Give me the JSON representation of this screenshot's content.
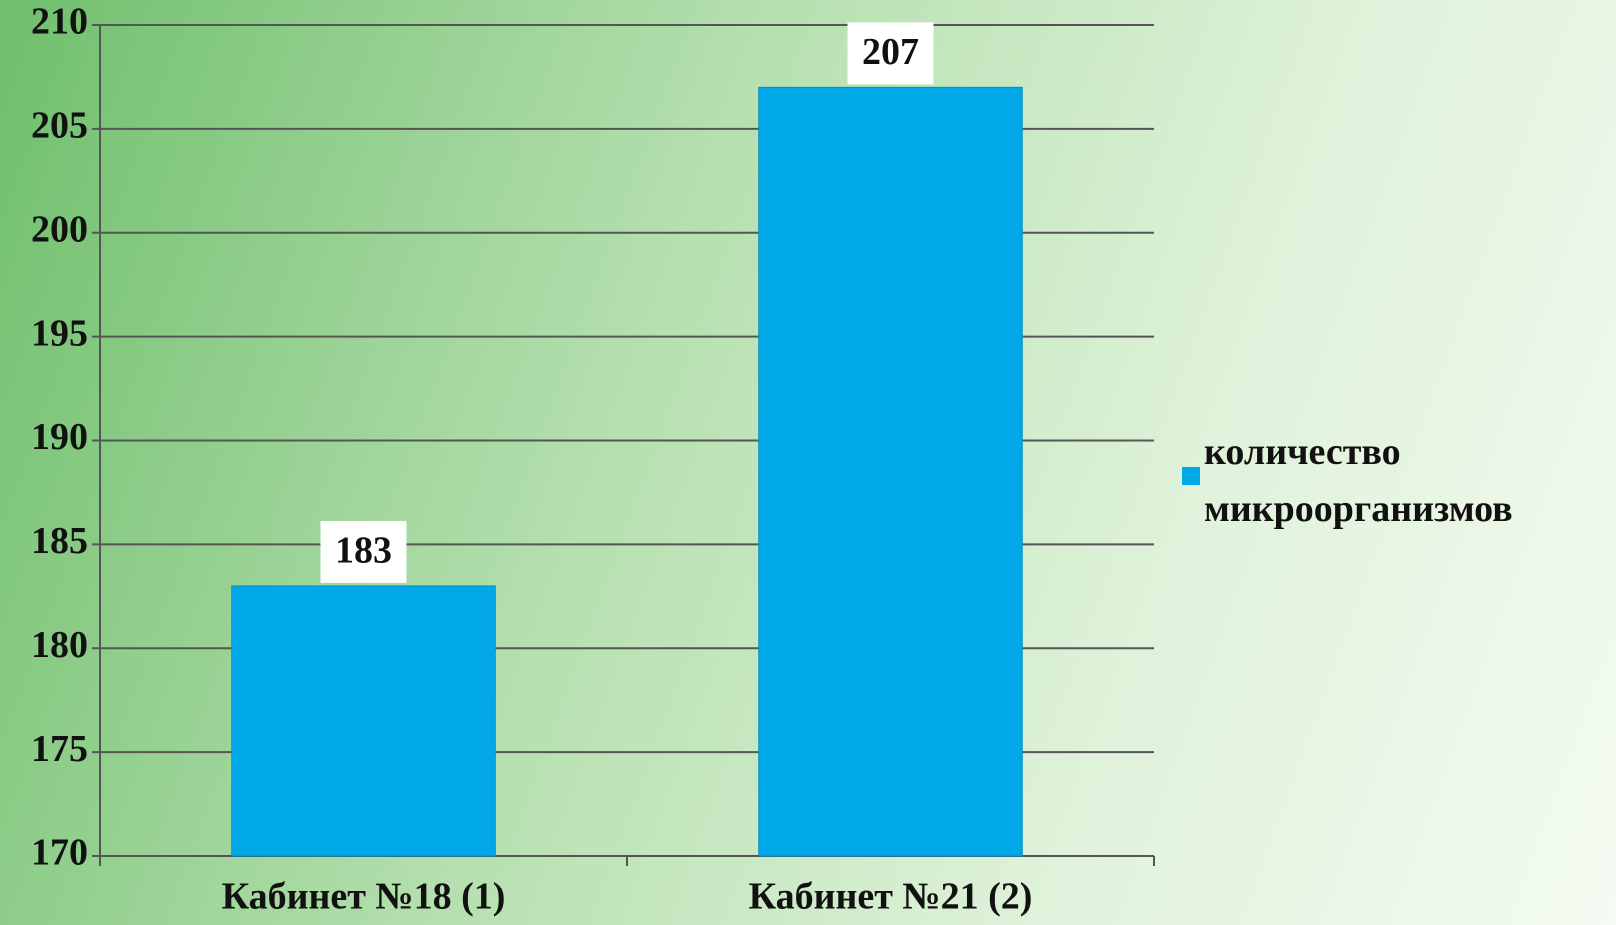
{
  "chart_data": {
    "type": "bar",
    "categories": [
      "Кабинет №18 (1)",
      "Кабинет №21 (2)"
    ],
    "series": [
      {
        "name": "количество микроорганизмов",
        "color": "#00a8e8",
        "values": [
          183,
          207
        ]
      }
    ],
    "ylim": [
      170,
      210
    ],
    "yticks": [
      170,
      175,
      180,
      185,
      190,
      195,
      200,
      205,
      210
    ],
    "grid": true,
    "legend": "right"
  }
}
